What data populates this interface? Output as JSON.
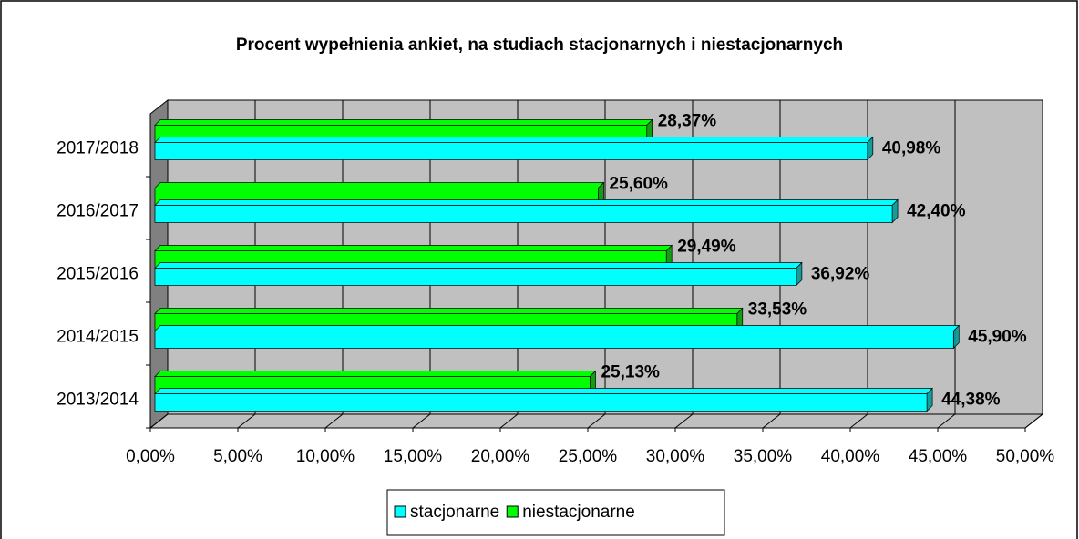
{
  "chart_data": {
    "type": "bar3d_horizontal",
    "title": "Procent wypełnienia ankiet, na studiach  stacjonarnych i niestacjonarnych",
    "categories": [
      "2013/2014",
      "2014/2015",
      "2015/2016",
      "2016/2017",
      "2017/2018"
    ],
    "series": [
      {
        "name": "stacjonarne",
        "color": "#00ffff",
        "values": [
          44.38,
          45.9,
          36.92,
          42.4,
          40.98
        ],
        "value_labels": [
          "44,38%",
          "45,90%",
          "36,92%",
          "42,40%",
          "40,98%"
        ]
      },
      {
        "name": "niestacjonarne",
        "color": "#00ff00",
        "values": [
          25.13,
          33.53,
          29.49,
          25.6,
          28.37
        ],
        "value_labels": [
          "25,13%",
          "33,53%",
          "29,49%",
          "25,60%",
          "28,37%"
        ]
      }
    ],
    "xlim": [
      0,
      50
    ],
    "xticks": [
      {
        "value": 0,
        "label": "0,00%"
      },
      {
        "value": 5,
        "label": "5,00%"
      },
      {
        "value": 10,
        "label": "10,00%"
      },
      {
        "value": 15,
        "label": "15,00%"
      },
      {
        "value": 20,
        "label": "20,00%"
      },
      {
        "value": 25,
        "label": "25,00%"
      },
      {
        "value": 30,
        "label": "30,00%"
      },
      {
        "value": 35,
        "label": "35,00%"
      },
      {
        "value": 40,
        "label": "40,00%"
      },
      {
        "value": 45,
        "label": "45,00%"
      },
      {
        "value": 50,
        "label": "50,00%"
      }
    ],
    "grid": true,
    "legend": "bottom"
  }
}
